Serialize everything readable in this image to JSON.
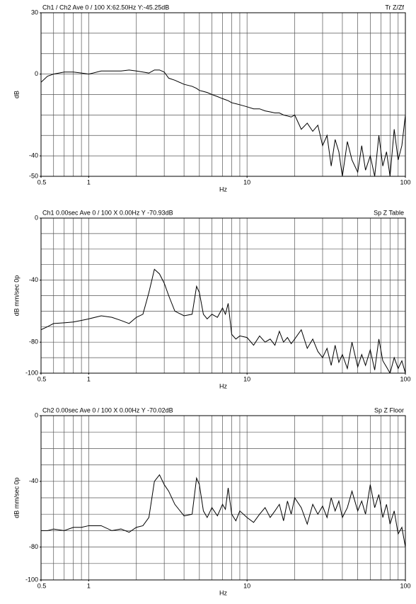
{
  "chart_data": [
    {
      "type": "line",
      "title": "Ch1 / Ch2  Ave 0 / 100  X:62.50Hz  Y:-45.25dB",
      "subtitle": "Tr Z/Zf",
      "ylabel": "dB",
      "xlabel": "Hz",
      "log_x": true,
      "grid": true,
      "xlim": [
        0.5,
        100
      ],
      "xticks": [
        0.5,
        1,
        10,
        100
      ],
      "xgrid": [
        0.5,
        0.6,
        0.7,
        0.8,
        0.9,
        1,
        2,
        3,
        4,
        5,
        6,
        7,
        8,
        9,
        10,
        20,
        30,
        40,
        50,
        60,
        70,
        80,
        90,
        100
      ],
      "ylim": [
        -50,
        30
      ],
      "yticks": [
        30,
        0,
        -40,
        -50
      ],
      "ygrid": [
        30,
        20,
        10,
        0,
        -10,
        -20,
        -30,
        -40,
        -50
      ],
      "x": [
        0.5,
        0.55,
        0.6,
        0.7,
        0.8,
        0.9,
        1,
        1.2,
        1.4,
        1.6,
        1.8,
        2,
        2.2,
        2.4,
        2.6,
        2.8,
        3,
        3.2,
        3.5,
        4,
        4.5,
        4.8,
        5,
        5.3,
        5.6,
        6,
        6.5,
        7,
        7.3,
        7.6,
        8,
        8.5,
        9,
        10,
        11,
        12,
        13,
        14,
        15,
        16,
        17,
        18,
        19,
        20,
        22,
        24,
        26,
        28,
        30,
        32,
        34,
        36,
        38,
        40,
        43,
        46,
        50,
        53,
        56,
        60,
        64,
        68,
        72,
        76,
        80,
        85,
        90,
        95,
        100
      ],
      "series": [
        {
          "color": "#000000",
          "values": [
            -4,
            -1,
            0,
            1,
            1,
            0.5,
            0,
            1.5,
            1.5,
            1.5,
            2,
            1.5,
            1,
            0.5,
            2,
            2,
            1,
            -2,
            -3,
            -5,
            -6,
            -7,
            -8,
            -8.5,
            -9,
            -10,
            -11,
            -12,
            -12.5,
            -13,
            -14,
            -14.5,
            -15,
            -16,
            -17,
            -17,
            -18,
            -18.5,
            -19,
            -19,
            -20,
            -20.5,
            -21,
            -20,
            -27,
            -24,
            -28,
            -25,
            -35,
            -30,
            -45,
            -32,
            -38,
            -50,
            -33,
            -42,
            -48,
            -35,
            -47,
            -40,
            -50,
            -30,
            -45,
            -38,
            -50,
            -27,
            -42,
            -35,
            -20
          ]
        }
      ]
    },
    {
      "type": "line",
      "title": "Ch1  0.00sec  Ave 0 / 100  X 0.00Hz  Y -70.93dB",
      "subtitle": "Sp Z Table",
      "ylabel": "dB mm/sec 0p",
      "xlabel": "Hz",
      "log_x": true,
      "grid": true,
      "xlim": [
        0.5,
        100
      ],
      "xticks": [
        0.5,
        1,
        10,
        100
      ],
      "xgrid": [
        0.5,
        0.6,
        0.7,
        0.8,
        0.9,
        1,
        2,
        3,
        4,
        5,
        6,
        7,
        8,
        9,
        10,
        20,
        30,
        40,
        50,
        60,
        70,
        80,
        90,
        100
      ],
      "ylim": [
        -100,
        0
      ],
      "yticks": [
        0,
        -40,
        -80,
        -100
      ],
      "ygrid": [
        0,
        -10,
        -20,
        -30,
        -40,
        -50,
        -60,
        -70,
        -80,
        -90,
        -100
      ],
      "x": [
        0.5,
        0.55,
        0.6,
        0.7,
        0.8,
        0.9,
        1,
        1.2,
        1.4,
        1.6,
        1.8,
        2,
        2.2,
        2.4,
        2.6,
        2.8,
        3,
        3.2,
        3.5,
        4,
        4.5,
        4.8,
        5,
        5.3,
        5.6,
        6,
        6.5,
        7,
        7.3,
        7.6,
        8,
        8.5,
        9,
        10,
        11,
        12,
        13,
        14,
        15,
        16,
        17,
        18,
        19,
        20,
        22,
        24,
        26,
        28,
        30,
        32,
        34,
        36,
        38,
        40,
        43,
        46,
        50,
        53,
        56,
        60,
        64,
        68,
        72,
        76,
        80,
        85,
        90,
        95,
        100
      ],
      "series": [
        {
          "color": "#000000",
          "values": [
            -72,
            -70,
            -68,
            -67.5,
            -67,
            -66,
            -65,
            -63,
            -64,
            -66,
            -68,
            -64,
            -62,
            -48,
            -33,
            -36,
            -42,
            -50,
            -60,
            -63,
            -62,
            -44,
            -48,
            -62,
            -65,
            -62,
            -64,
            -58,
            -62,
            -55,
            -75,
            -78,
            -76,
            -77,
            -82,
            -76,
            -80,
            -78,
            -82,
            -73,
            -80,
            -77,
            -81,
            -78,
            -72,
            -84,
            -78,
            -86,
            -90,
            -84,
            -95,
            -82,
            -93,
            -88,
            -97,
            -80,
            -96,
            -88,
            -95,
            -85,
            -98,
            -78,
            -92,
            -96,
            -100,
            -90,
            -97,
            -92,
            -100
          ]
        }
      ]
    },
    {
      "type": "line",
      "title": "Ch2  0.00sec  Ave 0 / 100  X 0.00Hz  Y -70.02dB",
      "subtitle": "Sp Z Floor",
      "ylabel": "dB mm/sec 0p",
      "xlabel": "Hz",
      "log_x": true,
      "grid": true,
      "xlim": [
        0.5,
        100
      ],
      "xticks": [
        0.5,
        1,
        10,
        100
      ],
      "xgrid": [
        0.5,
        0.6,
        0.7,
        0.8,
        0.9,
        1,
        2,
        3,
        4,
        5,
        6,
        7,
        8,
        9,
        10,
        20,
        30,
        40,
        50,
        60,
        70,
        80,
        90,
        100
      ],
      "ylim": [
        -100,
        0
      ],
      "yticks": [
        0,
        -40,
        -80,
        -100
      ],
      "ygrid": [
        0,
        -10,
        -20,
        -30,
        -40,
        -50,
        -60,
        -70,
        -80,
        -90,
        -100
      ],
      "x": [
        0.5,
        0.55,
        0.6,
        0.7,
        0.8,
        0.9,
        1,
        1.2,
        1.4,
        1.6,
        1.8,
        2,
        2.2,
        2.4,
        2.6,
        2.8,
        3,
        3.2,
        3.5,
        4,
        4.5,
        4.8,
        5,
        5.3,
        5.6,
        6,
        6.5,
        7,
        7.3,
        7.6,
        8,
        8.5,
        9,
        10,
        11,
        12,
        13,
        14,
        15,
        16,
        17,
        18,
        19,
        20,
        22,
        24,
        26,
        28,
        30,
        32,
        34,
        36,
        38,
        40,
        43,
        46,
        50,
        53,
        56,
        60,
        64,
        68,
        72,
        76,
        80,
        85,
        90,
        95,
        100
      ],
      "series": [
        {
          "color": "#000000",
          "values": [
            -70,
            -70,
            -69,
            -70,
            -68,
            -68,
            -67,
            -67,
            -70,
            -69,
            -71,
            -68,
            -67,
            -62,
            -40,
            -36,
            -42,
            -46,
            -54,
            -61,
            -60,
            -38,
            -42,
            -58,
            -62,
            -56,
            -61,
            -54,
            -57,
            -44,
            -60,
            -64,
            -58,
            -62,
            -65,
            -60,
            -56,
            -62,
            -58,
            -54,
            -64,
            -52,
            -60,
            -50,
            -56,
            -66,
            -54,
            -60,
            -55,
            -62,
            -50,
            -58,
            -52,
            -62,
            -56,
            -46,
            -58,
            -52,
            -60,
            -42,
            -56,
            -48,
            -62,
            -54,
            -66,
            -58,
            -72,
            -68,
            -80
          ]
        }
      ]
    }
  ]
}
